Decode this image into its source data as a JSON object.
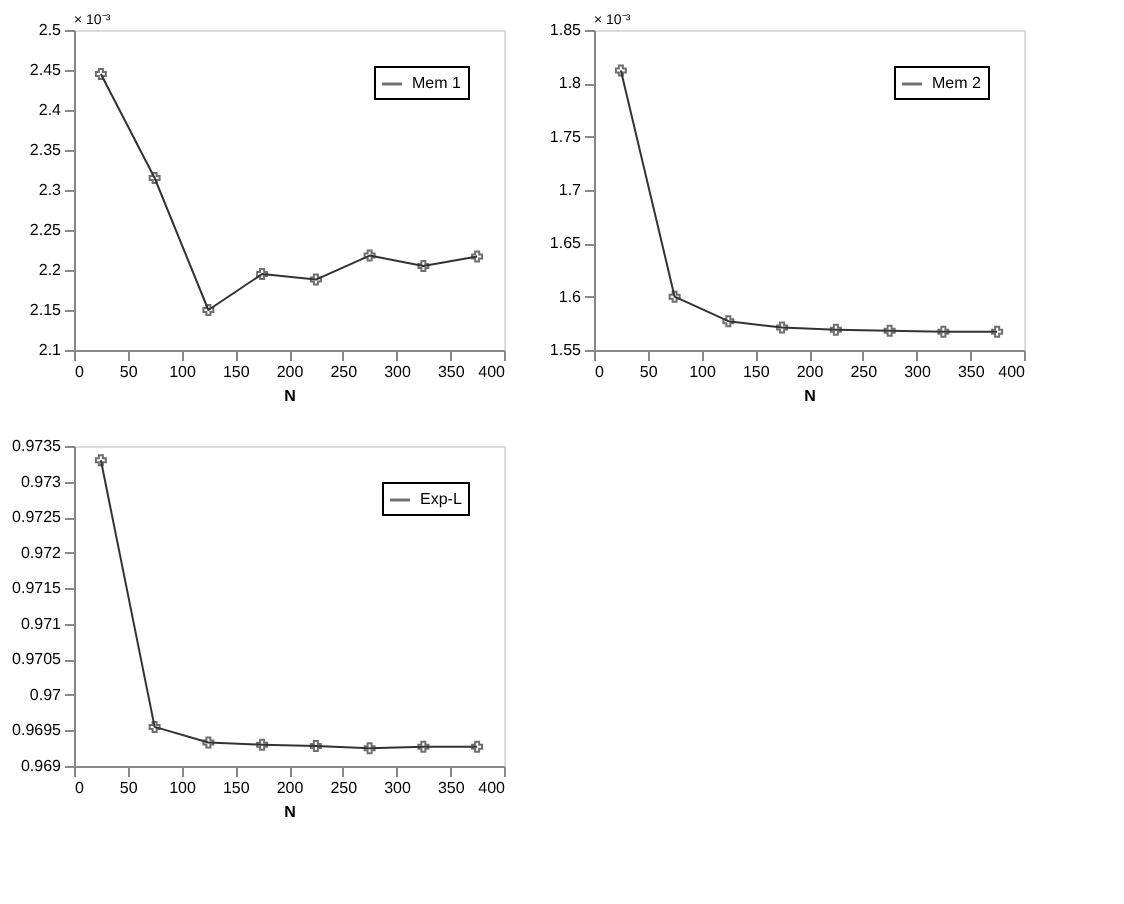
{
  "chart_data": [
    {
      "type": "line",
      "x": [
        25,
        75,
        125,
        175,
        225,
        275,
        325,
        375
      ],
      "xlabel": "N",
      "annotations": [
        "× 10⁻³"
      ],
      "xlim": [
        0,
        400
      ],
      "xticks": [
        0,
        50,
        100,
        150,
        200,
        250,
        300,
        350,
        400
      ],
      "ylim": [
        2.1,
        2.5
      ],
      "yticks": [
        2.1,
        2.15,
        2.2,
        2.25,
        2.3,
        2.35,
        2.4,
        2.45,
        2.5
      ],
      "marker": "cross",
      "legend": "top right",
      "grid": false,
      "series": [
        {
          "name": "Mem 1",
          "color": "#333333",
          "values": [
            2.445,
            2.315,
            2.15,
            2.195,
            2.188,
            2.218,
            2.205,
            2.217
          ]
        }
      ]
    },
    {
      "type": "line",
      "x": [
        25,
        75,
        125,
        175,
        225,
        275,
        325,
        375
      ],
      "xlabel": "N",
      "annotations": [
        "× 10⁻³"
      ],
      "xlim": [
        0,
        400
      ],
      "xticks": [
        0,
        50,
        100,
        150,
        200,
        250,
        300,
        350,
        400
      ],
      "ylim": [
        1.55,
        1.85
      ],
      "yticks": [
        1.55,
        1.6,
        1.65,
        1.7,
        1.75,
        1.8,
        1.85
      ],
      "marker": "cross",
      "legend": "top right",
      "grid": false,
      "series": [
        {
          "name": "Mem 2",
          "color": "#333333",
          "values": [
            1.812,
            1.6,
            1.577,
            1.571,
            1.569,
            1.568,
            1.567,
            1.567
          ]
        }
      ]
    },
    {
      "type": "line",
      "x": [
        25,
        75,
        125,
        175,
        225,
        275,
        325,
        375
      ],
      "xlabel": "N",
      "xlim": [
        0,
        400
      ],
      "xticks": [
        0,
        50,
        100,
        150,
        200,
        250,
        300,
        350,
        400
      ],
      "ylim": [
        0.969,
        0.9735
      ],
      "yticks": [
        0.969,
        0.9695,
        0.97,
        0.9705,
        0.971,
        0.9715,
        0.972,
        0.9725,
        0.973,
        0.9735
      ],
      "marker": "cross",
      "legend": "top right",
      "grid": false,
      "series": [
        {
          "name": "Exp-L",
          "color": "#333333",
          "values": [
            0.9733,
            0.96955,
            0.96933,
            0.9693,
            0.96928,
            0.96925,
            0.96927,
            0.96927
          ]
        }
      ]
    }
  ]
}
